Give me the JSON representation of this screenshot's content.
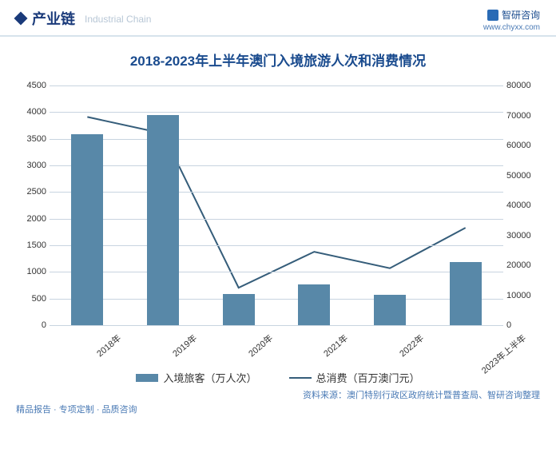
{
  "header": {
    "section_title": "产业链",
    "section_subtitle": "Industrial Chain",
    "brand": "智研咨询",
    "url": "www.chyxx.com"
  },
  "chart": {
    "type": "bar+line",
    "title": "2018-2023年上半年澳门入境旅游人次和消费情况",
    "categories": [
      "2018年",
      "2019年",
      "2020年",
      "2021年",
      "2022年",
      "2023年上半年"
    ],
    "bar_series": {
      "name": "入境旅客（万人次）",
      "values": [
        3580,
        3940,
        590,
        770,
        570,
        1180
      ],
      "color": "#5888a8"
    },
    "line_series": {
      "name": "总消费（百万澳门元）",
      "values": [
        69500,
        64000,
        12500,
        24500,
        19000,
        32500
      ],
      "color": "#355d7a"
    },
    "y_left": {
      "min": 0,
      "max": 4500,
      "step": 500
    },
    "y_right": {
      "min": 0,
      "max": 80000,
      "step": 10000
    },
    "grid_color": "#c8d4e0",
    "background_color": "#ffffff",
    "bar_width_pct": 7,
    "line_width": 2,
    "axis_fontsize": 11,
    "title_fontsize": 17
  },
  "source": "资料来源：澳门特别行政区政府统计暨普查局、智研咨询整理",
  "footer": "精品报告 · 专项定制 · 品质咨询",
  "watermark": "智研咨询"
}
